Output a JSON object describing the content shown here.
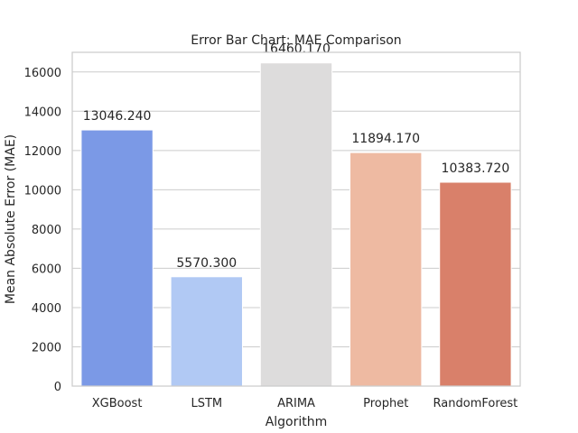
{
  "chart_data": {
    "type": "bar",
    "title": "Error Bar Chart: MAE Comparison",
    "xlabel": "Algorithm",
    "ylabel": "Mean Absolute Error (MAE)",
    "categories": [
      "XGBoost",
      "LSTM",
      "ARIMA",
      "Prophet",
      "RandomForest"
    ],
    "values": [
      13046.24,
      5570.3,
      16460.17,
      11894.17,
      10383.72
    ],
    "value_labels": [
      "13046.240",
      "5570.300",
      "16460.170",
      "11894.170",
      "10383.720"
    ],
    "bar_colors": [
      "#7b99e6",
      "#b1c9f4",
      "#dddcdc",
      "#eebaa2",
      "#d9806a"
    ],
    "ylim": [
      0,
      17000
    ],
    "yticks": [
      0,
      2000,
      4000,
      6000,
      8000,
      10000,
      12000,
      14000,
      16000
    ],
    "grid": true
  }
}
